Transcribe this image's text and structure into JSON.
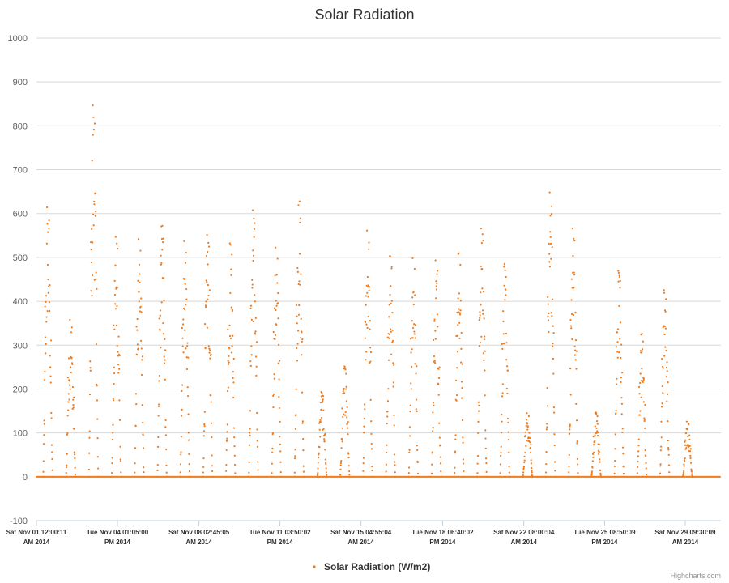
{
  "chart_data": {
    "type": "scatter",
    "title": "Solar Radiation",
    "xlabel": "",
    "ylabel": "",
    "ylim": [
      -100,
      1000
    ],
    "y_ticks": [
      -100,
      0,
      100,
      200,
      300,
      400,
      500,
      600,
      700,
      800,
      900,
      1000
    ],
    "x_range": [
      "2014-11-01T00:00:11",
      "2014-11-30T23:00:00"
    ],
    "x_ticks": [
      {
        "time": "2014-11-01T00:00:11",
        "line1": "Sat Nov 01 12:00:11",
        "line2": "AM 2014"
      },
      {
        "time": "2014-11-04T13:05:00",
        "line1": "Tue Nov 04 01:05:00",
        "line2": "PM 2014"
      },
      {
        "time": "2014-11-08T02:45:05",
        "line1": "Sat Nov 08 02:45:05",
        "line2": "AM 2014"
      },
      {
        "time": "2014-11-11T15:50:02",
        "line1": "Tue Nov 11 03:50:02",
        "line2": "PM 2014"
      },
      {
        "time": "2014-11-15T04:55:04",
        "line1": "Sat Nov 15 04:55:04",
        "line2": "AM 2014"
      },
      {
        "time": "2014-11-18T18:40:02",
        "line1": "Tue Nov 18 06:40:02",
        "line2": "PM 2014"
      },
      {
        "time": "2014-11-22T08:00:04",
        "line1": "Sat Nov 22 08:00:04",
        "line2": "AM 2014"
      },
      {
        "time": "2014-11-25T20:50:09",
        "line1": "Tue Nov 25 08:50:09",
        "line2": "PM 2014"
      },
      {
        "time": "2014-11-29T09:30:09",
        "line1": "Sat Nov 29 09:30:09",
        "line2": "AM 2014"
      }
    ],
    "grid": true,
    "legend_position": "bottom-center",
    "series": [
      {
        "name": "Solar Radiation (W/m2)",
        "color": "#f07c1e",
        "daily_peaks": [
          {
            "date": "2014-11-01",
            "peak": 635
          },
          {
            "date": "2014-11-02",
            "peak": 370
          },
          {
            "date": "2014-11-03",
            "peak": 875
          },
          {
            "date": "2014-11-04",
            "peak": 565
          },
          {
            "date": "2014-11-05",
            "peak": 560
          },
          {
            "date": "2014-11-06",
            "peak": 590
          },
          {
            "date": "2014-11-07",
            "peak": 555
          },
          {
            "date": "2014-11-08",
            "peak": 570
          },
          {
            "date": "2014-11-09",
            "peak": 550
          },
          {
            "date": "2014-11-10",
            "peak": 628
          },
          {
            "date": "2014-11-11",
            "peak": 540
          },
          {
            "date": "2014-11-12",
            "peak": 640
          },
          {
            "date": "2014-11-13",
            "peak": 200
          },
          {
            "date": "2014-11-14",
            "peak": 255
          },
          {
            "date": "2014-11-15",
            "peak": 580
          },
          {
            "date": "2014-11-16",
            "peak": 520
          },
          {
            "date": "2014-11-17",
            "peak": 515
          },
          {
            "date": "2014-11-18",
            "peak": 510
          },
          {
            "date": "2014-11-19",
            "peak": 525
          },
          {
            "date": "2014-11-20",
            "peak": 585
          },
          {
            "date": "2014-11-21",
            "peak": 495
          },
          {
            "date": "2014-11-22",
            "peak": 150
          },
          {
            "date": "2014-11-23",
            "peak": 670
          },
          {
            "date": "2014-11-24",
            "peak": 585
          },
          {
            "date": "2014-11-25",
            "peak": 150
          },
          {
            "date": "2014-11-26",
            "peak": 485
          },
          {
            "date": "2014-11-27",
            "peak": 335
          },
          {
            "date": "2014-11-28",
            "peak": 440
          },
          {
            "date": "2014-11-29",
            "peak": 130
          }
        ]
      }
    ]
  },
  "credits": "Highcharts.com"
}
